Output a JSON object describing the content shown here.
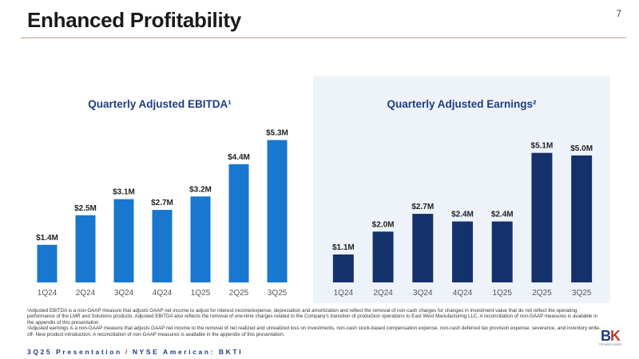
{
  "header": {
    "title": "Enhanced Profitability",
    "page_number": "7"
  },
  "colors": {
    "ebitda_bar": "#1877cf",
    "earnings_bar": "#15316b",
    "accent": "#c0392b",
    "title_blue": "#1e3c82"
  },
  "chart_data": [
    {
      "type": "bar",
      "title": "Quarterly Adjusted EBITDA¹",
      "categories": [
        "1Q24",
        "2Q24",
        "3Q24",
        "4Q24",
        "1Q25",
        "2Q25",
        "3Q25"
      ],
      "values": [
        1.4,
        2.5,
        3.1,
        2.7,
        3.2,
        4.4,
        5.3
      ],
      "labels": [
        "$1.4M",
        "$2.5M",
        "$3.1M",
        "$2.7M",
        "$3.2M",
        "$4.4M",
        "$5.3M"
      ],
      "ylim": [
        0,
        6
      ],
      "grid": false,
      "xlabel": "",
      "ylabel": ""
    },
    {
      "type": "bar",
      "title": "Quarterly Adjusted Earnings²",
      "categories": [
        "1Q24",
        "2Q24",
        "3Q24",
        "4Q24",
        "1Q25",
        "2Q25",
        "3Q25"
      ],
      "values": [
        1.1,
        2.0,
        2.7,
        2.4,
        2.4,
        5.1,
        5.0
      ],
      "labels": [
        "$1.1M",
        "$2.0M",
        "$2.7M",
        "$2.4M",
        "$2.4M",
        "$5.1M",
        "$5.0M"
      ],
      "ylim": [
        0,
        6
      ],
      "grid": false,
      "xlabel": "",
      "ylabel": ""
    }
  ],
  "footnotes": {
    "note1": "¹Adjusted EBITDA is a non-GAAP measure that adjusts GAAP net income to adjust for interest income/expense, depreciation and amortization and reflect the removal of non-cash charges for changes in investment value that do not reflect the operating performance of the LMR and Solutions products. Adjusted EBITDA also reflects the removal of one-time charges related to the Company's transition of production operations to East West Manufacturing LLC. A reconciliation of non-GAAP measures is available in the appendix of this presentation.",
    "note2": "²Adjusted earnings is a non-GAAP measure that adjusts GAAP net income to the removal of net realized and unrealized loss on investments, non-cash stock-based compensation expense, non-cash deferred tax provision expense, severance, and inventory write-off- New product introduction. A reconciliation of non-GAAP measures is available in the appendix of this presentation."
  },
  "footer": {
    "left": "3Q25 Presentation",
    "separator": "/",
    "right": "NYSE American: BKTI"
  },
  "logo": {
    "mark_b": "B",
    "mark_k": "K",
    "sub": "TECHNOLOGIES"
  }
}
